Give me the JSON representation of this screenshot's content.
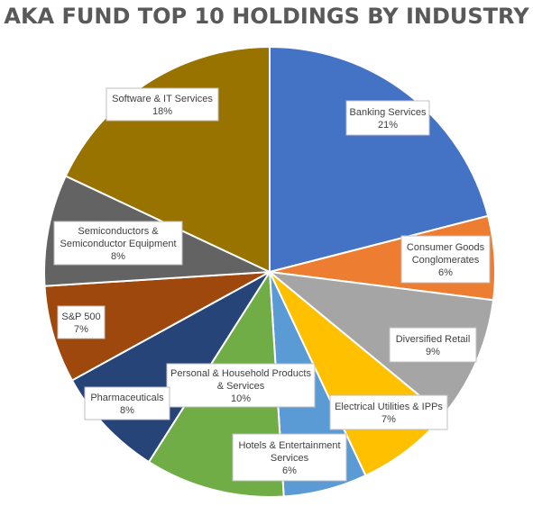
{
  "chart_data": {
    "type": "pie",
    "title": "AKA FUND TOP 10 HOLDINGS BY INDUSTRY",
    "slices": [
      {
        "label": "Banking Services",
        "value": 21,
        "color": "#4472c4"
      },
      {
        "label": "Consumer Goods Conglomerates",
        "value": 6,
        "color": "#ed7d31"
      },
      {
        "label": "Diversified Retail",
        "value": 9,
        "color": "#a5a5a5"
      },
      {
        "label": "Electrical Utilities & IPPs",
        "value": 7,
        "color": "#ffc000"
      },
      {
        "label": "Hotels & Entertainment Services",
        "value": 6,
        "color": "#5b9bd5"
      },
      {
        "label": "Personal & Household Products & Services",
        "value": 10,
        "color": "#70ad47"
      },
      {
        "label": "Pharmaceuticals",
        "value": 8,
        "color": "#264478"
      },
      {
        "label": "S&P 500",
        "value": 7,
        "color": "#9e480e"
      },
      {
        "label": "Semiconductors & Semiconductor Equipment",
        "value": 8,
        "color": "#636363"
      },
      {
        "label": "Software & IT Services",
        "value": 18,
        "color": "#997300"
      }
    ],
    "data_labels": [
      {
        "lines": [
          "Banking Services"
        ],
        "pct": "21%"
      },
      {
        "lines": [
          "Consumer Goods",
          "Conglomerates"
        ],
        "pct": "6%"
      },
      {
        "lines": [
          "Diversified Retail"
        ],
        "pct": "9%"
      },
      {
        "lines": [
          "Electrical Utilities & IPPs"
        ],
        "pct": "7%"
      },
      {
        "lines": [
          "Hotels & Entertainment",
          "Services"
        ],
        "pct": "6%"
      },
      {
        "lines": [
          "Personal & Household Products",
          "& Services"
        ],
        "pct": "10%"
      },
      {
        "lines": [
          "Pharmaceuticals"
        ],
        "pct": "8%"
      },
      {
        "lines": [
          "S&P 500"
        ],
        "pct": "7%"
      },
      {
        "lines": [
          "Semiconductors &",
          "Semiconductor Equipment"
        ],
        "pct": "8%"
      },
      {
        "lines": [
          "Software & IT Services"
        ],
        "pct": "18%"
      }
    ]
  }
}
